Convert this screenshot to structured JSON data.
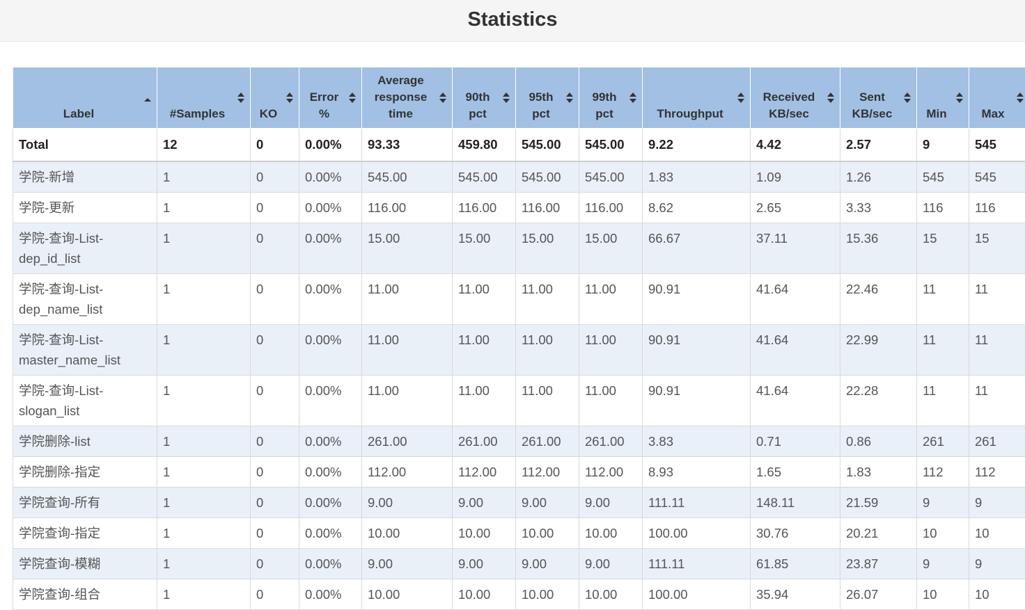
{
  "page_title": "Statistics",
  "columns": [
    {
      "lines": [
        "Label"
      ],
      "sort": "asc"
    },
    {
      "lines": [
        "#Samples"
      ],
      "sort": "both"
    },
    {
      "lines": [
        "KO"
      ],
      "sort": "both"
    },
    {
      "lines": [
        "Error",
        "%"
      ],
      "sort": "both"
    },
    {
      "lines": [
        "Average",
        "response",
        "time"
      ],
      "sort": "both"
    },
    {
      "lines": [
        "90th",
        "pct"
      ],
      "sort": "both"
    },
    {
      "lines": [
        "95th",
        "pct"
      ],
      "sort": "both"
    },
    {
      "lines": [
        "99th",
        "pct"
      ],
      "sort": "both"
    },
    {
      "lines": [
        "Throughput"
      ],
      "sort": "both"
    },
    {
      "lines": [
        "Received",
        "KB/sec"
      ],
      "sort": "both"
    },
    {
      "lines": [
        "Sent",
        "KB/sec"
      ],
      "sort": "both"
    },
    {
      "lines": [
        "Min"
      ],
      "sort": "both"
    },
    {
      "lines": [
        "Max"
      ],
      "sort": "both"
    }
  ],
  "total_row": [
    "Total",
    "12",
    "0",
    "0.00%",
    "93.33",
    "459.80",
    "545.00",
    "545.00",
    "9.22",
    "4.42",
    "2.57",
    "9",
    "545"
  ],
  "rows": [
    [
      "学院-新增",
      "1",
      "0",
      "0.00%",
      "545.00",
      "545.00",
      "545.00",
      "545.00",
      "1.83",
      "1.09",
      "1.26",
      "545",
      "545"
    ],
    [
      "学院-更新",
      "1",
      "0",
      "0.00%",
      "116.00",
      "116.00",
      "116.00",
      "116.00",
      "8.62",
      "2.65",
      "3.33",
      "116",
      "116"
    ],
    [
      "学院-查询-List-dep_id_list",
      "1",
      "0",
      "0.00%",
      "15.00",
      "15.00",
      "15.00",
      "15.00",
      "66.67",
      "37.11",
      "15.36",
      "15",
      "15"
    ],
    [
      "学院-查询-List-dep_name_list",
      "1",
      "0",
      "0.00%",
      "11.00",
      "11.00",
      "11.00",
      "11.00",
      "90.91",
      "41.64",
      "22.46",
      "11",
      "11"
    ],
    [
      "学院-查询-List-master_name_list",
      "1",
      "0",
      "0.00%",
      "11.00",
      "11.00",
      "11.00",
      "11.00",
      "90.91",
      "41.64",
      "22.99",
      "11",
      "11"
    ],
    [
      "学院-查询-List-slogan_list",
      "1",
      "0",
      "0.00%",
      "11.00",
      "11.00",
      "11.00",
      "11.00",
      "90.91",
      "41.64",
      "22.28",
      "11",
      "11"
    ],
    [
      "学院删除-list",
      "1",
      "0",
      "0.00%",
      "261.00",
      "261.00",
      "261.00",
      "261.00",
      "3.83",
      "0.71",
      "0.86",
      "261",
      "261"
    ],
    [
      "学院删除-指定",
      "1",
      "0",
      "0.00%",
      "112.00",
      "112.00",
      "112.00",
      "112.00",
      "8.93",
      "1.65",
      "1.83",
      "112",
      "112"
    ],
    [
      "学院查询-所有",
      "1",
      "0",
      "0.00%",
      "9.00",
      "9.00",
      "9.00",
      "9.00",
      "111.11",
      "148.11",
      "21.59",
      "9",
      "9"
    ],
    [
      "学院查询-指定",
      "1",
      "0",
      "0.00%",
      "10.00",
      "10.00",
      "10.00",
      "10.00",
      "100.00",
      "30.76",
      "20.21",
      "10",
      "10"
    ],
    [
      "学院查询-模糊",
      "1",
      "0",
      "0.00%",
      "9.00",
      "9.00",
      "9.00",
      "9.00",
      "111.11",
      "61.85",
      "23.87",
      "9",
      "9"
    ],
    [
      "学院查询-组合",
      "1",
      "0",
      "0.00%",
      "10.00",
      "10.00",
      "10.00",
      "10.00",
      "100.00",
      "35.94",
      "26.07",
      "10",
      "10"
    ]
  ],
  "colors": {
    "header_bg": "#a1c0e4",
    "odd_row_bg": "#e9f0f8",
    "even_row_bg": "#ffffff"
  }
}
